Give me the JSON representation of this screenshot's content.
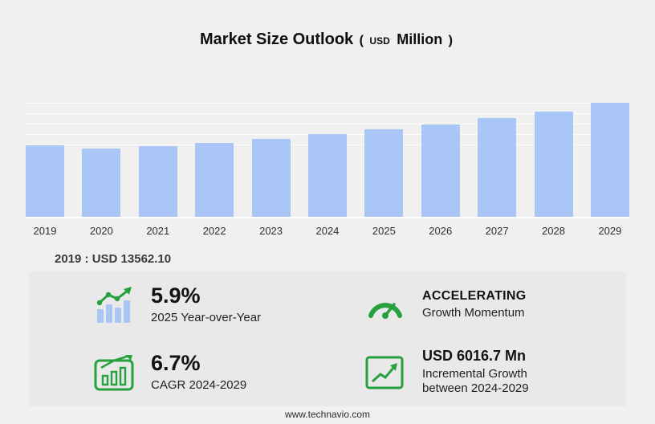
{
  "page": {
    "footer": "www.technavio.com",
    "background": "#f0f0f1",
    "panel_background": "#e9e9ea"
  },
  "title": {
    "main": "Market Size Outlook",
    "paren_open": "(",
    "unit_small": "USD",
    "unit_big": "Million",
    "paren_close": ")"
  },
  "chart_data": {
    "type": "bar",
    "title": "Market Size Outlook (USD Million)",
    "categories": [
      "2019",
      "2020",
      "2021",
      "2022",
      "2023",
      "2024",
      "2025",
      "2026",
      "2027",
      "2028",
      "2029"
    ],
    "values": [
      13562.1,
      13050,
      13420,
      14100,
      14800,
      15700,
      16626,
      17620,
      18800,
      20100,
      21716.7
    ],
    "xlabel": "",
    "ylabel": "",
    "ylim": [
      0,
      21716.7
    ],
    "grid": "horizontal gridlines in upper region only",
    "legend": "none",
    "bar_color": "#a9c6f7",
    "base_year_label": "2019 : USD 13562.10"
  },
  "stats": [
    {
      "icon": "yoy-bar-chart",
      "headline": "5.9%",
      "subline": "2025 Year-over-Year"
    },
    {
      "icon": "speedometer",
      "headline": "ACCELERATING",
      "subline": "Growth Momentum"
    },
    {
      "icon": "cagr-chart",
      "headline": "6.7%",
      "subline": "CAGR 2024-2029"
    },
    {
      "icon": "trend-up",
      "headline": "USD 6016.7 Mn",
      "subline": "Incremental Growth between 2024-2029"
    }
  ],
  "colors": {
    "accent_green": "#27a13e",
    "bar_blue": "#a9c6f7"
  }
}
